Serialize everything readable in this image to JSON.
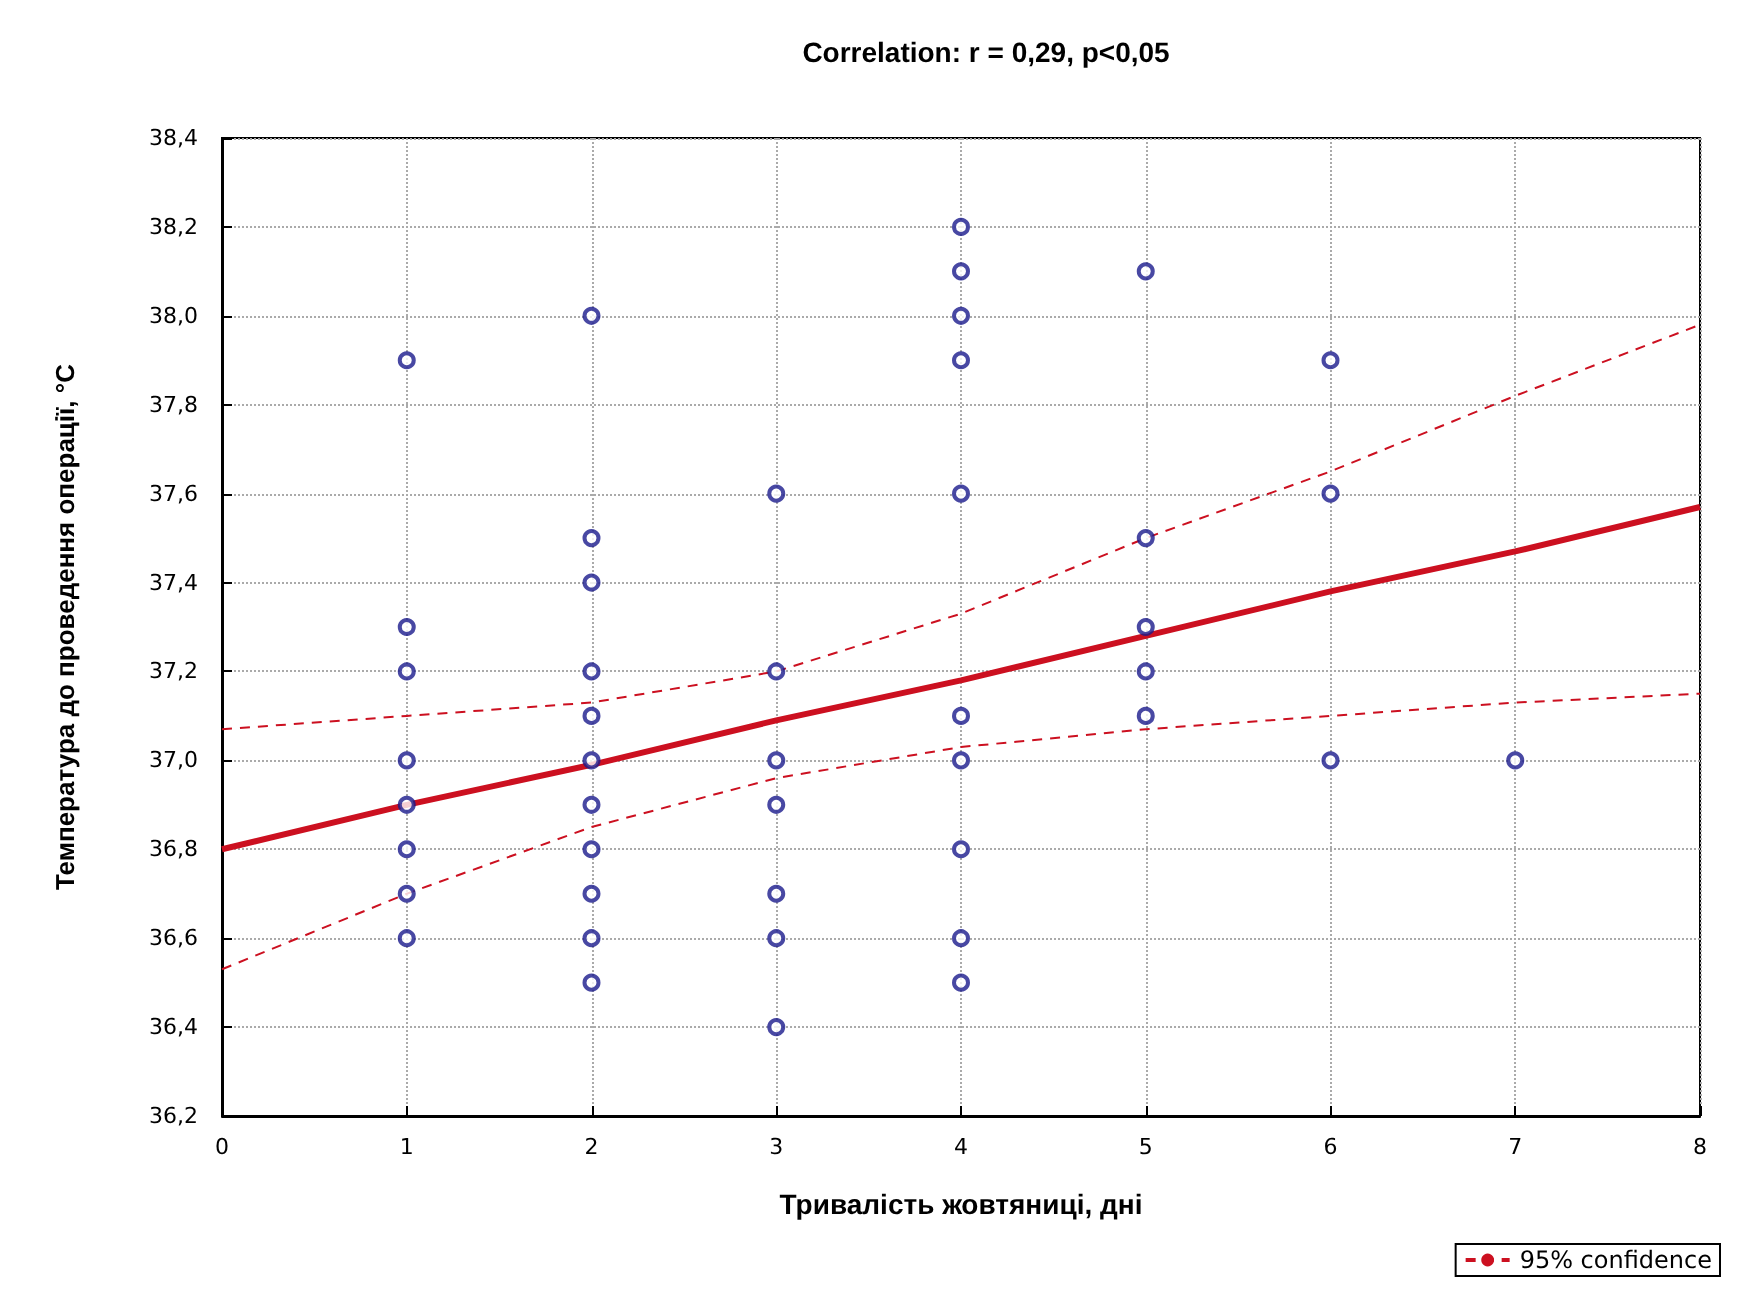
{
  "chart_data": {
    "type": "scatter",
    "title": "Correlation: r = 0,29, p<0,05",
    "xlabel": "Тривалість жовтяниці, дні",
    "ylabel": "Температура до проведення операції, °С",
    "series": [
      {
        "color": "#1a1a8c",
        "marker": "circle",
        "x": [
          1,
          1,
          1,
          1,
          1,
          1,
          1,
          1,
          2,
          2,
          2,
          2,
          2,
          2,
          2,
          2,
          2,
          2,
          2,
          3,
          3,
          3,
          3,
          3,
          3,
          3,
          4,
          4,
          4,
          4,
          4,
          4,
          4,
          4,
          4,
          4,
          5,
          5,
          5,
          5,
          5,
          6,
          6,
          6,
          7
        ],
        "values": [
          37.9,
          37.3,
          37.2,
          37.0,
          36.9,
          36.8,
          36.7,
          36.6,
          38.0,
          37.5,
          37.4,
          37.2,
          37.1,
          37.0,
          36.9,
          36.8,
          36.7,
          36.6,
          36.5,
          37.6,
          37.2,
          37.0,
          36.9,
          36.7,
          36.6,
          36.4,
          38.2,
          38.1,
          38.0,
          37.9,
          37.6,
          37.1,
          37.0,
          36.8,
          36.6,
          36.5,
          38.1,
          37.5,
          37.3,
          37.2,
          37.1,
          37.9,
          37.6,
          37.0,
          37.0
        ]
      },
      {
        "type": "line",
        "color": "#cc1020",
        "line_style": "solid",
        "x": [
          0,
          1,
          2,
          3,
          4,
          5,
          6,
          7,
          8
        ],
        "values": [
          36.8,
          36.9,
          36.99,
          37.09,
          37.18,
          37.28,
          37.38,
          37.47,
          37.57
        ]
      },
      {
        "type": "line",
        "name": "95% confidence",
        "color": "#cc1020",
        "line_style": "dashed",
        "x": [
          0,
          1,
          2,
          3,
          4,
          5,
          6,
          7,
          8
        ],
        "values": [
          37.07,
          37.1,
          37.13,
          37.2,
          37.33,
          37.5,
          37.65,
          37.82,
          37.98
        ]
      },
      {
        "type": "line",
        "color": "#cc1020",
        "line_style": "dashed",
        "x": [
          0,
          1,
          2,
          3,
          4,
          5,
          6,
          7,
          8
        ],
        "values": [
          36.53,
          36.7,
          36.85,
          36.96,
          37.03,
          37.07,
          37.1,
          37.13,
          37.15
        ]
      }
    ],
    "xlim": [
      0,
      8
    ],
    "xticks": [
      0,
      1,
      2,
      3,
      4,
      5,
      6,
      7,
      8
    ],
    "ylim": [
      36.2,
      38.4
    ],
    "yticks": [
      {
        "value": 36.2,
        "label": "36,2"
      },
      {
        "value": 36.4,
        "label": "36,4"
      },
      {
        "value": 36.6,
        "label": "36,6"
      },
      {
        "value": 36.8,
        "label": "36,8"
      },
      {
        "value": 37.0,
        "label": "37,0"
      },
      {
        "value": 37.2,
        "label": "37,2"
      },
      {
        "value": 37.4,
        "label": "37,4"
      },
      {
        "value": 37.6,
        "label": "37,6"
      },
      {
        "value": 37.8,
        "label": "37,8"
      },
      {
        "value": 38.0,
        "label": "38,0"
      },
      {
        "value": 38.2,
        "label": "38,2"
      },
      {
        "value": 38.4,
        "label": "38,4"
      }
    ],
    "grid": true,
    "legend": "bottom right"
  }
}
